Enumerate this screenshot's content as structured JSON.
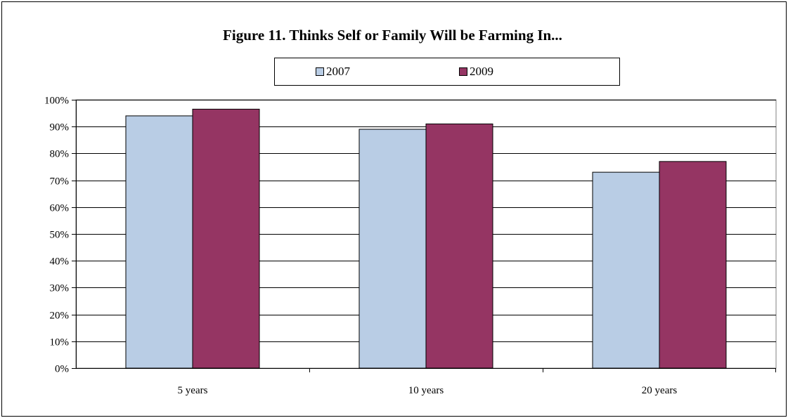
{
  "chart_data": {
    "type": "bar",
    "title": "Figure 11.  Thinks Self or Family Will be Farming In...",
    "categories": [
      "5 years",
      "10 years",
      "20 years"
    ],
    "series": [
      {
        "name": "2007",
        "values": [
          94,
          89,
          73
        ],
        "color": "#b9cde5"
      },
      {
        "name": "2009",
        "values": [
          96.5,
          91,
          77
        ],
        "color": "#953563"
      }
    ],
    "ylim": [
      0,
      100
    ],
    "yticks": [
      0,
      10,
      20,
      30,
      40,
      50,
      60,
      70,
      80,
      90,
      100
    ],
    "ytick_suffix": "%",
    "grid": true,
    "legend": "top"
  }
}
